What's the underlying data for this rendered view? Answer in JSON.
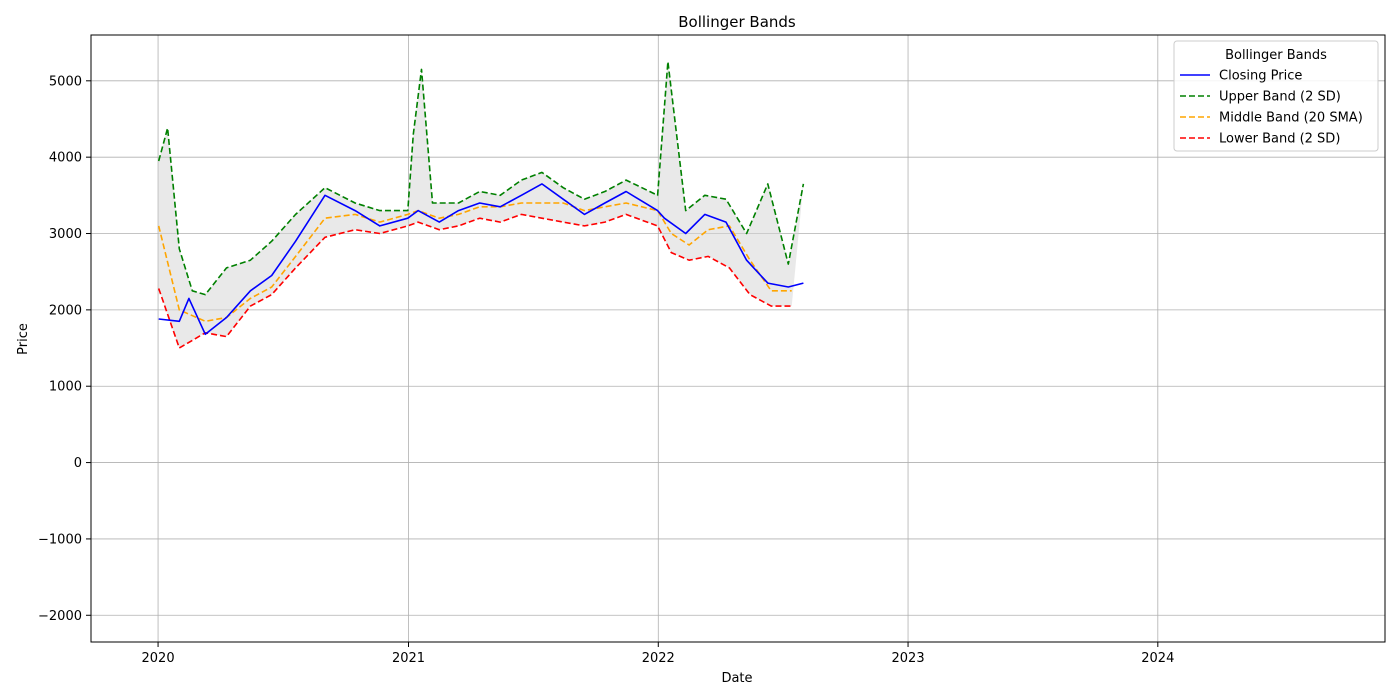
{
  "chart_data": {
    "type": "line",
    "title": "Bollinger Bands",
    "xlabel": "Date",
    "ylabel": "Price",
    "xlim": [
      "2019-09-25",
      "2024-11-28"
    ],
    "ylim": [
      -2350,
      5600
    ],
    "x_ticks": [
      "2020",
      "2021",
      "2022",
      "2023",
      "2024"
    ],
    "y_ticks": [
      -2000,
      -1000,
      0,
      1000,
      2000,
      3000,
      4000,
      5000
    ],
    "grid": true,
    "legend": {
      "title": "Bollinger Bands",
      "placement": "top-right",
      "entries": [
        "Closing Price",
        "Upper Band (2 SD)",
        "Middle Band (20 SMA)",
        "Lower Band (2 SD)"
      ]
    },
    "series": [
      {
        "name": "Closing Price",
        "color": "#0000ff",
        "style": "solid",
        "x": [
          "2020-01-02",
          "2020-02-01",
          "2020-02-15",
          "2020-03-10",
          "2020-04-10",
          "2020-05-15",
          "2020-06-15",
          "2020-07-20",
          "2020-09-01",
          "2020-10-15",
          "2020-11-20",
          "2020-12-31",
          "2021-01-15",
          "2021-02-15",
          "2021-03-15",
          "2021-04-15",
          "2021-05-15",
          "2021-06-15",
          "2021-07-15",
          "2021-08-15",
          "2021-09-15",
          "2021-10-15",
          "2021-11-15",
          "2021-12-31",
          "2022-01-10",
          "2022-02-10",
          "2022-03-10",
          "2022-04-10",
          "2022-05-10",
          "2022-06-10",
          "2022-07-10",
          "2022-08-01"
        ],
        "y": [
          1880,
          1850,
          2150,
          1680,
          1900,
          2250,
          2450,
          2900,
          3500,
          3300,
          3100,
          3200,
          3300,
          3150,
          3300,
          3400,
          3350,
          3500,
          3650,
          3450,
          3250,
          3400,
          3550,
          3300,
          3200,
          3000,
          3250,
          3150,
          2650,
          2350,
          2300,
          2350
        ]
      },
      {
        "name": "Upper Band (2 SD)",
        "color": "#008000",
        "style": "dashed",
        "x": [
          "2020-01-02",
          "2020-01-15",
          "2020-02-01",
          "2020-02-20",
          "2020-03-10",
          "2020-04-10",
          "2020-05-15",
          "2020-06-15",
          "2020-07-20",
          "2020-09-01",
          "2020-10-15",
          "2020-11-20",
          "2020-12-31",
          "2021-01-08",
          "2021-01-20",
          "2021-02-05",
          "2021-03-15",
          "2021-04-15",
          "2021-05-15",
          "2021-06-15",
          "2021-07-15",
          "2021-08-15",
          "2021-09-15",
          "2021-10-15",
          "2021-11-15",
          "2021-12-31",
          "2022-01-15",
          "2022-02-10",
          "2022-03-10",
          "2022-04-10",
          "2022-05-10",
          "2022-06-10",
          "2022-07-10",
          "2022-08-01"
        ],
        "y": [
          3950,
          4380,
          2800,
          2250,
          2200,
          2550,
          2650,
          2900,
          3250,
          3600,
          3400,
          3300,
          3300,
          4300,
          5150,
          3400,
          3400,
          3550,
          3500,
          3700,
          3800,
          3600,
          3450,
          3550,
          3700,
          3500,
          5250,
          3300,
          3500,
          3450,
          3000,
          3650,
          2600,
          3650
        ]
      },
      {
        "name": "Middle Band (20 SMA)",
        "color": "#ffa500",
        "style": "dashed",
        "x": [
          "2020-01-02",
          "2020-02-01",
          "2020-03-10",
          "2020-04-10",
          "2020-05-15",
          "2020-06-15",
          "2020-07-20",
          "2020-09-01",
          "2020-10-15",
          "2020-11-20",
          "2020-12-31",
          "2021-01-15",
          "2021-02-15",
          "2021-03-15",
          "2021-04-15",
          "2021-05-15",
          "2021-06-15",
          "2021-07-15",
          "2021-08-15",
          "2021-09-15",
          "2021-10-15",
          "2021-11-15",
          "2021-12-31",
          "2022-01-20",
          "2022-02-15",
          "2022-03-15",
          "2022-04-15",
          "2022-05-15",
          "2022-06-15",
          "2022-07-15"
        ],
        "y": [
          3100,
          2000,
          1850,
          1900,
          2150,
          2300,
          2700,
          3200,
          3250,
          3150,
          3250,
          3300,
          3200,
          3250,
          3350,
          3350,
          3400,
          3400,
          3400,
          3300,
          3350,
          3400,
          3300,
          3000,
          2850,
          3050,
          3100,
          2650,
          2250,
          2250
        ]
      },
      {
        "name": "Lower Band (2 SD)",
        "color": "#ff0000",
        "style": "dashed",
        "x": [
          "2020-01-02",
          "2020-02-01",
          "2020-03-10",
          "2020-04-10",
          "2020-05-15",
          "2020-06-15",
          "2020-07-20",
          "2020-09-01",
          "2020-10-15",
          "2020-11-20",
          "2020-12-31",
          "2021-01-15",
          "2021-02-15",
          "2021-03-15",
          "2021-04-15",
          "2021-05-15",
          "2021-06-15",
          "2021-07-15",
          "2021-08-15",
          "2021-09-15",
          "2021-10-15",
          "2021-11-15",
          "2021-12-31",
          "2022-01-20",
          "2022-02-15",
          "2022-03-15",
          "2022-04-15",
          "2022-05-15",
          "2022-06-15",
          "2022-07-15"
        ],
        "y": [
          2280,
          1500,
          1700,
          1650,
          2050,
          2200,
          2550,
          2950,
          3050,
          3000,
          3100,
          3150,
          3050,
          3100,
          3200,
          3150,
          3250,
          3200,
          3150,
          3100,
          3150,
          3250,
          3100,
          2750,
          2650,
          2700,
          2550,
          2200,
          2050,
          2050
        ]
      }
    ],
    "band_fill_color": "#d3d3d3"
  }
}
